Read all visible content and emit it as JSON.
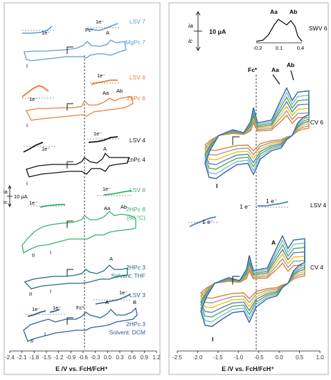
{
  "colors": {
    "blue_lsv": "#5b9bd5",
    "orange": "#ed7d31",
    "black": "#111111",
    "green": "#2db36a",
    "teal": "#1d6b72",
    "navy": "#2e5c99",
    "cv_orange": "#e07a32",
    "cv_gray": "#9a9a9a",
    "cv_yellow": "#f2c200",
    "cv_blue": "#4a7fc1",
    "cv_green": "#5aa84a",
    "cv_lightblue": "#7ab8e0",
    "cv_darkblue": "#2f5f9e"
  },
  "chart_data": [
    {
      "type": "line",
      "panel": "left",
      "xlabel": "E /V vs. FcH/FcH⁺",
      "xlim": [
        -2.4,
        1.2
      ],
      "x_ticks": [
        "-2.4",
        "-2.1",
        "-1.8",
        "-1.5",
        "-1.2",
        "-0.9",
        "-0.6",
        "-0.3",
        "0.0",
        "0.3",
        "0.6",
        "0.9",
        "1.2"
      ],
      "reference_line": {
        "label": "Fc*",
        "x": -0.57
      },
      "current_scale": {
        "top": "ia",
        "bottom": "ic",
        "value": "10 μA"
      },
      "series": [
        {
          "name": "LSV 7",
          "color_key": "blue_lsv",
          "annotations": [
            "1e⁻",
            "1e⁻"
          ]
        },
        {
          "name": "MgPc 7",
          "color_key": "blue_lsv",
          "annotations": [
            "Fc*",
            "A",
            "I"
          ]
        },
        {
          "name": "LSV 6",
          "color_key": "orange",
          "annotations": [
            "1e⁻",
            "1e⁻"
          ]
        },
        {
          "name": "ZnPc 6",
          "color_key": "orange",
          "annotations": [
            "Aa",
            "Ab",
            "I"
          ]
        },
        {
          "name": "LSV  4",
          "color_key": "black",
          "annotations": [
            "1e⁻",
            "1e⁻"
          ]
        },
        {
          "name": "ZnPc 4",
          "color_key": "black",
          "annotations": [
            "A",
            "I"
          ]
        },
        {
          "name": "LSV 8",
          "color_key": "green",
          "annotations": [
            "1e⁻",
            "1e⁻"
          ]
        },
        {
          "name": "2HPc 8",
          "note": "(60 °C)",
          "color_key": "green",
          "annotations": [
            "Aa",
            "Ab",
            "I",
            "II"
          ]
        },
        {
          "name": "2HPc 3",
          "note": "Solvent: THF",
          "color_key": "teal",
          "annotations": [
            "A",
            "I",
            "II"
          ]
        },
        {
          "name": "LSV 3",
          "color_key": "teal",
          "annotations": [
            "1e⁻"
          ]
        },
        {
          "name": "2HPc 3",
          "note": "Solvent: DCM",
          "color_key": "navy",
          "annotations": [
            "1e⁻",
            "1e⁻",
            "Fc*",
            "A",
            "B",
            "I",
            "II"
          ]
        }
      ]
    },
    {
      "type": "line",
      "panel": "right",
      "xlabel": "E /V vs. FcH/FcH⁺",
      "xlim": [
        -2.5,
        1.0
      ],
      "x_ticks": [
        "-2.5",
        "-2.0",
        "-1.5",
        "-1.0",
        "-0.5",
        "0.0",
        "0.5",
        "1.0"
      ],
      "reference_line": {
        "label": "Fc*",
        "x": -0.55
      },
      "current_scale": {
        "top": "ia",
        "bottom": "ic",
        "value": "10 μA"
      },
      "inset": {
        "name": "SWV 6",
        "type": "line",
        "x_ticks": [
          "-0.2",
          "0.1",
          "0.4"
        ],
        "peaks": [
          "Aa",
          "Ab"
        ]
      },
      "series": [
        {
          "name": "CV 6",
          "annotations": [
            "Fc*",
            "Aa",
            "Ab",
            "I"
          ]
        },
        {
          "name": "LSV 4",
          "annotations": [
            "1 e⁻",
            "1 e⁻",
            "1 e⁻"
          ]
        },
        {
          "name": "CV 4",
          "annotations": [
            "A",
            "I"
          ]
        }
      ]
    }
  ]
}
